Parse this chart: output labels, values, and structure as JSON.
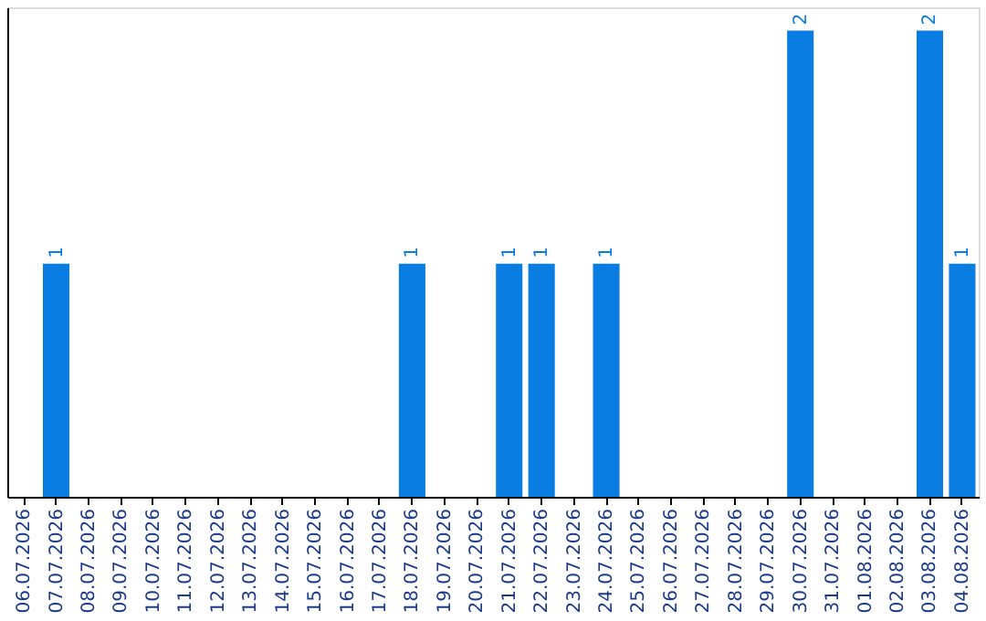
{
  "chart_data": {
    "type": "bar",
    "categories": [
      "06.07.2026",
      "07.07.2026",
      "08.07.2026",
      "09.07.2026",
      "10.07.2026",
      "11.07.2026",
      "12.07.2026",
      "13.07.2026",
      "14.07.2026",
      "15.07.2026",
      "16.07.2026",
      "17.07.2026",
      "18.07.2026",
      "19.07.2026",
      "20.07.2026",
      "21.07.2026",
      "22.07.2026",
      "23.07.2026",
      "24.07.2026",
      "25.07.2026",
      "26.07.2026",
      "27.07.2026",
      "28.07.2026",
      "29.07.2026",
      "30.07.2026",
      "31.07.2026",
      "01.08.2026",
      "02.08.2026",
      "03.08.2026",
      "04.08.2026"
    ],
    "values": [
      0,
      1,
      0,
      0,
      0,
      0,
      0,
      0,
      0,
      0,
      0,
      0,
      1,
      0,
      0,
      1,
      1,
      0,
      1,
      0,
      0,
      0,
      0,
      0,
      2,
      0,
      0,
      0,
      2,
      1
    ],
    "value_labels": [
      null,
      "1",
      null,
      null,
      null,
      null,
      null,
      null,
      null,
      null,
      null,
      null,
      "1",
      null,
      null,
      "1",
      "1",
      null,
      "1",
      null,
      null,
      null,
      null,
      null,
      "2",
      null,
      null,
      null,
      "2",
      "1"
    ],
    "color": "#0a7de3",
    "ylim": [
      0,
      2.1
    ],
    "tick_labels": "x",
    "grid": false
  }
}
